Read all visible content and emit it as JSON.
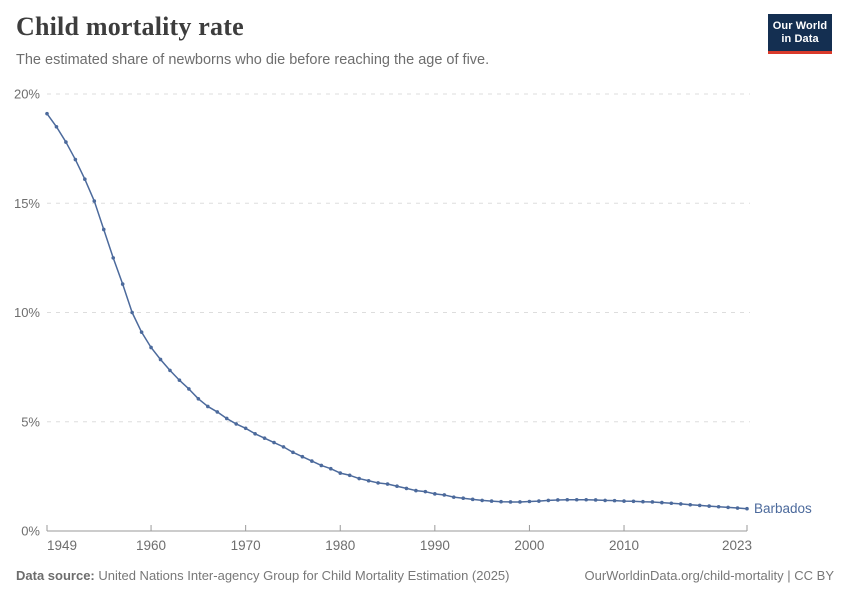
{
  "header": {
    "title": "Child mortality rate",
    "subtitle": "The estimated share of newborns who die before reaching the age of five.",
    "logo": {
      "line1": "Our World",
      "line2": "in Data"
    }
  },
  "chart_data": {
    "type": "line",
    "title": "Child mortality rate",
    "xlabel": "",
    "ylabel": "",
    "xlim": [
      1949,
      2023
    ],
    "ylim": [
      0,
      20
    ],
    "x_ticks": [
      1949,
      1960,
      1970,
      1980,
      1990,
      2000,
      2010,
      2023
    ],
    "y_ticks": [
      0,
      5,
      10,
      15,
      20
    ],
    "y_tick_suffix": "%",
    "grid": "horizontal-dashed",
    "legend_position": "end-of-line-label",
    "x": [
      1949,
      1950,
      1951,
      1952,
      1953,
      1954,
      1955,
      1956,
      1957,
      1958,
      1959,
      1960,
      1961,
      1962,
      1963,
      1964,
      1965,
      1966,
      1967,
      1968,
      1969,
      1970,
      1971,
      1972,
      1973,
      1974,
      1975,
      1976,
      1977,
      1978,
      1979,
      1980,
      1981,
      1982,
      1983,
      1984,
      1985,
      1986,
      1987,
      1988,
      1989,
      1990,
      1991,
      1992,
      1993,
      1994,
      1995,
      1996,
      1997,
      1998,
      1999,
      2000,
      2001,
      2002,
      2003,
      2004,
      2005,
      2006,
      2007,
      2008,
      2009,
      2010,
      2011,
      2012,
      2013,
      2014,
      2015,
      2016,
      2017,
      2018,
      2019,
      2020,
      2021,
      2022,
      2023
    ],
    "series": [
      {
        "name": "Barbados",
        "color": "#4C6A9C",
        "values": [
          19.1,
          18.5,
          17.8,
          17.0,
          16.1,
          15.1,
          13.8,
          12.5,
          11.3,
          10.0,
          9.1,
          8.4,
          7.85,
          7.35,
          6.9,
          6.5,
          6.05,
          5.7,
          5.45,
          5.15,
          4.9,
          4.7,
          4.45,
          4.25,
          4.05,
          3.85,
          3.6,
          3.4,
          3.2,
          3.0,
          2.85,
          2.65,
          2.55,
          2.4,
          2.3,
          2.2,
          2.15,
          2.05,
          1.95,
          1.85,
          1.8,
          1.7,
          1.65,
          1.55,
          1.5,
          1.45,
          1.4,
          1.37,
          1.34,
          1.33,
          1.33,
          1.35,
          1.37,
          1.4,
          1.42,
          1.43,
          1.43,
          1.43,
          1.42,
          1.4,
          1.39,
          1.37,
          1.36,
          1.34,
          1.33,
          1.3,
          1.27,
          1.24,
          1.2,
          1.17,
          1.14,
          1.11,
          1.08,
          1.05,
          1.02
        ]
      }
    ]
  },
  "footer": {
    "source_label": "Data source:",
    "source_text": " United Nations Inter-agency Group for Child Mortality Estimation (2025)",
    "link_text": "OurWorldinData.org/child-mortality | CC BY"
  },
  "colors": {
    "series": "#4C6A9C",
    "gridline": "#dddddd",
    "axis": "#9a9a9a",
    "tick_label": "#6e6e6e",
    "title": "#3d3d3d",
    "subtitle": "#6e6e6e",
    "footer": "#787878",
    "logo_bg": "#142f51",
    "logo_accent": "#d93a2b"
  }
}
